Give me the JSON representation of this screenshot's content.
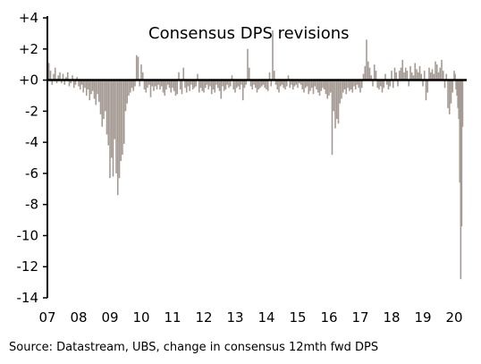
{
  "chart_data": {
    "type": "bar",
    "title": "Consensus DPS revisions",
    "xlabel": "",
    "ylabel": "",
    "ylim": [
      -14,
      4
    ],
    "yticks": [
      4,
      2,
      0,
      -2,
      -4,
      -6,
      -8,
      -10,
      -12,
      -14
    ],
    "ytick_labels": [
      "+4",
      "+2",
      "+0",
      "-2",
      "-4",
      "-6",
      "-8",
      "-10",
      "-12",
      "-14"
    ],
    "xlim": [
      2007.0,
      2020.4
    ],
    "xticks": [
      2007,
      2008,
      2009,
      2010,
      2011,
      2012,
      2013,
      2014,
      2015,
      2016,
      2017,
      2018,
      2019,
      2020
    ],
    "xtick_labels": [
      "07",
      "08",
      "09",
      "10",
      "11",
      "12",
      "13",
      "14",
      "15",
      "16",
      "17",
      "18",
      "19",
      "20"
    ],
    "grid": false,
    "bar_color": "#a59a93",
    "series": [
      {
        "x": [
          2007.05,
          2007.1,
          2007.15,
          2007.2,
          2007.25,
          2007.3,
          2007.35,
          2007.4,
          2007.45,
          2007.5,
          2007.55,
          2007.6,
          2007.65,
          2007.7,
          2007.75,
          2007.8,
          2007.85,
          2007.9,
          2007.95,
          2008.0,
          2008.05,
          2008.1,
          2008.15,
          2008.2,
          2008.25,
          2008.3,
          2008.35,
          2008.4,
          2008.45,
          2008.5,
          2008.55,
          2008.6,
          2008.65,
          2008.7,
          2008.75,
          2008.8,
          2008.85,
          2008.9,
          2008.95,
          2009.0,
          2009.05,
          2009.1,
          2009.15,
          2009.2,
          2009.25,
          2009.3,
          2009.35,
          2009.4,
          2009.45,
          2009.5,
          2009.55,
          2009.6,
          2009.65,
          2009.7,
          2009.75,
          2009.8,
          2009.85,
          2009.9,
          2009.95,
          2010.0,
          2010.05,
          2010.1,
          2010.15,
          2010.2,
          2010.25,
          2010.3,
          2010.35,
          2010.4,
          2010.45,
          2010.5,
          2010.55,
          2010.6,
          2010.65,
          2010.7,
          2010.75,
          2010.8,
          2010.85,
          2010.9,
          2010.95,
          2011.0,
          2011.05,
          2011.1,
          2011.15,
          2011.2,
          2011.25,
          2011.3,
          2011.35,
          2011.4,
          2011.45,
          2011.5,
          2011.55,
          2011.6,
          2011.65,
          2011.7,
          2011.75,
          2011.8,
          2011.85,
          2011.9,
          2011.95,
          2012.0,
          2012.05,
          2012.1,
          2012.15,
          2012.2,
          2012.25,
          2012.3,
          2012.35,
          2012.4,
          2012.45,
          2012.5,
          2012.55,
          2012.6,
          2012.65,
          2012.7,
          2012.75,
          2012.8,
          2012.85,
          2012.9,
          2012.95,
          2013.0,
          2013.05,
          2013.1,
          2013.15,
          2013.2,
          2013.25,
          2013.3,
          2013.35,
          2013.4,
          2013.45,
          2013.5,
          2013.55,
          2013.6,
          2013.65,
          2013.7,
          2013.75,
          2013.8,
          2013.85,
          2013.9,
          2013.95,
          2014.0,
          2014.05,
          2014.1,
          2014.15,
          2014.2,
          2014.25,
          2014.3,
          2014.35,
          2014.4,
          2014.45,
          2014.5,
          2014.55,
          2014.6,
          2014.65,
          2014.7,
          2014.75,
          2014.8,
          2014.85,
          2014.9,
          2014.95,
          2015.0,
          2015.05,
          2015.1,
          2015.15,
          2015.2,
          2015.25,
          2015.3,
          2015.35,
          2015.4,
          2015.45,
          2015.5,
          2015.55,
          2015.6,
          2015.65,
          2015.7,
          2015.75,
          2015.8,
          2015.85,
          2015.9,
          2015.95,
          2016.0,
          2016.05,
          2016.1,
          2016.15,
          2016.2,
          2016.25,
          2016.3,
          2016.35,
          2016.4,
          2016.45,
          2016.5,
          2016.55,
          2016.6,
          2016.65,
          2016.7,
          2016.75,
          2016.8,
          2016.85,
          2016.9,
          2016.95,
          2017.0,
          2017.05,
          2017.1,
          2017.15,
          2017.2,
          2017.25,
          2017.3,
          2017.35,
          2017.4,
          2017.45,
          2017.5,
          2017.55,
          2017.6,
          2017.65,
          2017.7,
          2017.75,
          2017.8,
          2017.85,
          2017.9,
          2017.95,
          2018.0,
          2018.05,
          2018.1,
          2018.15,
          2018.2,
          2018.25,
          2018.3,
          2018.35,
          2018.4,
          2018.45,
          2018.5,
          2018.55,
          2018.6,
          2018.65,
          2018.7,
          2018.75,
          2018.8,
          2018.85,
          2018.9,
          2018.95,
          2019.0,
          2019.05,
          2019.1,
          2019.15,
          2019.2,
          2019.25,
          2019.3,
          2019.35,
          2019.4,
          2019.45,
          2019.5,
          2019.55,
          2019.6,
          2019.65,
          2019.7,
          2019.75,
          2019.8,
          2019.85,
          2019.9,
          2019.95,
          2020.0,
          2020.03,
          2020.06,
          2020.09,
          2020.12,
          2020.15,
          2020.18,
          2020.21,
          2020.24,
          2020.27
        ],
        "values": [
          1.1,
          0.6,
          -0.3,
          0.4,
          0.8,
          -0.2,
          0.3,
          0.5,
          -0.2,
          0.4,
          -0.3,
          0.2,
          0.5,
          -0.4,
          -0.2,
          0.3,
          -0.5,
          -0.3,
          0.2,
          -0.4,
          -0.6,
          -0.3,
          -0.8,
          -0.5,
          -1.0,
          -0.6,
          -1.3,
          -0.9,
          -0.7,
          -1.2,
          -1.6,
          -0.9,
          -1.4,
          -2.2,
          -3.0,
          -2.5,
          -2.0,
          -3.5,
          -4.2,
          -6.3,
          -5.0,
          -6.2,
          -3.8,
          -6.0,
          -7.4,
          -6.3,
          -5.2,
          -4.8,
          -4.1,
          -2.0,
          -1.5,
          -1.0,
          -0.8,
          -0.5,
          -0.7,
          -0.4,
          1.6,
          1.5,
          -0.4,
          1.0,
          0.5,
          -0.6,
          -0.8,
          -0.5,
          -0.3,
          -1.1,
          -0.4,
          -0.7,
          -0.4,
          -0.6,
          -0.3,
          -0.6,
          -0.4,
          -0.8,
          -1.0,
          -0.6,
          -0.3,
          -0.5,
          -0.8,
          -0.5,
          -0.7,
          -1.0,
          -0.9,
          0.5,
          -0.6,
          -0.9,
          0.8,
          -0.5,
          -0.8,
          -0.4,
          -0.7,
          -0.3,
          -0.6,
          -0.5,
          -0.4,
          0.4,
          -0.8,
          -0.5,
          -0.7,
          -0.8,
          -0.5,
          -0.3,
          -0.6,
          -0.4,
          -0.9,
          -0.6,
          -0.8,
          -0.3,
          -0.5,
          -0.7,
          -1.2,
          -0.4,
          -0.7,
          -0.6,
          -0.3,
          -0.5,
          -0.4,
          0.3,
          -0.6,
          -0.8,
          -0.5,
          -0.4,
          -0.6,
          -0.3,
          -1.3,
          -0.5,
          -0.3,
          2.0,
          0.8,
          -0.4,
          -0.6,
          -0.3,
          -0.5,
          -0.8,
          -0.6,
          -0.5,
          -0.4,
          -0.3,
          -0.5,
          -0.6,
          -0.7,
          0.5,
          -0.4,
          3.2,
          0.6,
          -0.3,
          -0.6,
          -0.8,
          -0.4,
          -0.3,
          -0.5,
          -0.6,
          -0.4,
          0.3,
          -0.5,
          -0.3,
          -0.6,
          -0.4,
          -0.3,
          -0.5,
          -0.2,
          -0.3,
          -0.6,
          -0.8,
          -0.5,
          -0.4,
          -0.9,
          -0.7,
          -0.5,
          -0.9,
          -0.4,
          -0.6,
          -0.8,
          -1.0,
          -0.7,
          -0.5,
          -0.6,
          -0.9,
          -1.2,
          -1.0,
          -0.8,
          -4.8,
          -2.0,
          -3.1,
          -2.5,
          -2.8,
          -1.5,
          -1.2,
          -0.8,
          -0.6,
          -0.9,
          -0.5,
          -0.7,
          -0.6,
          -0.8,
          -0.4,
          -0.6,
          -0.3,
          -0.5,
          -0.8,
          -0.5,
          0.4,
          0.9,
          2.6,
          1.2,
          0.8,
          0.3,
          -0.4,
          1.0,
          0.6,
          -0.5,
          -0.6,
          -0.4,
          -0.8,
          -0.5,
          0.4,
          -0.3,
          -0.6,
          -0.4,
          0.6,
          -0.5,
          0.8,
          0.5,
          -0.4,
          0.6,
          0.8,
          1.3,
          0.5,
          0.8,
          0.6,
          -0.4,
          0.9,
          0.5,
          0.3,
          1.1,
          0.7,
          0.5,
          0.9,
          0.4,
          -0.4,
          0.6,
          -1.3,
          -0.8,
          0.8,
          0.5,
          0.7,
          0.4,
          1.2,
          1.0,
          0.5,
          0.8,
          1.3,
          0.6,
          -0.5,
          0.4,
          -1.8,
          -2.2,
          -1.5,
          -0.8,
          0.6,
          0.4,
          -0.6,
          -1.0,
          -1.8,
          -2.5,
          -6.6,
          -12.8,
          -9.4,
          -3.0
        ]
      }
    ]
  },
  "footer": {
    "source": "Source: Datastream, UBS, change in consensus 12mth fwd DPS"
  }
}
